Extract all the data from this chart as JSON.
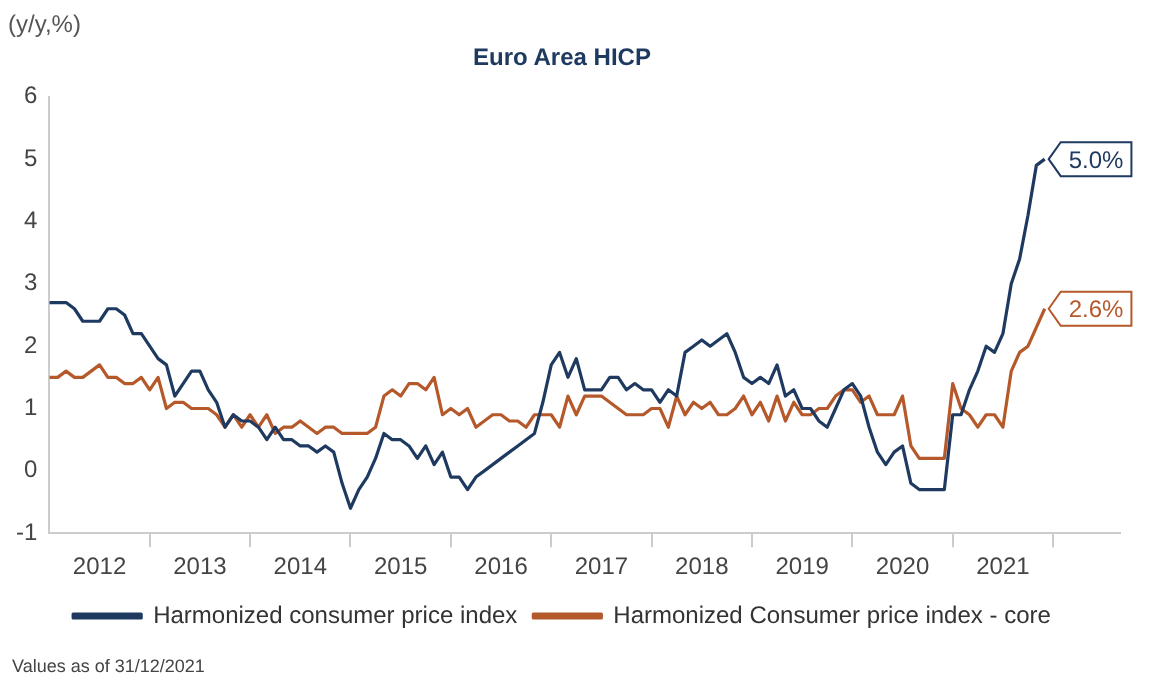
{
  "chart_data": {
    "type": "line",
    "title": "Euro Area HICP",
    "ylabel": "(y/y,%)",
    "x": [
      "2012-01",
      "2012-02",
      "2012-03",
      "2012-04",
      "2012-05",
      "2012-06",
      "2012-07",
      "2012-08",
      "2012-09",
      "2012-10",
      "2012-11",
      "2012-12",
      "2013-01",
      "2013-02",
      "2013-03",
      "2013-04",
      "2013-05",
      "2013-06",
      "2013-07",
      "2013-08",
      "2013-09",
      "2013-10",
      "2013-11",
      "2013-12",
      "2014-01",
      "2014-02",
      "2014-03",
      "2014-04",
      "2014-05",
      "2014-06",
      "2014-07",
      "2014-08",
      "2014-09",
      "2014-10",
      "2014-11",
      "2014-12",
      "2015-01",
      "2015-02",
      "2015-03",
      "2015-04",
      "2015-05",
      "2015-06",
      "2015-07",
      "2015-08",
      "2015-09",
      "2015-10",
      "2015-11",
      "2015-12",
      "2016-01",
      "2016-02",
      "2016-03",
      "2016-04",
      "2016-05",
      "2016-06",
      "2016-07",
      "2016-08",
      "2016-09",
      "2016-10",
      "2016-11",
      "2016-12",
      "2017-01",
      "2017-02",
      "2017-03",
      "2017-04",
      "2017-05",
      "2017-06",
      "2017-07",
      "2017-08",
      "2017-09",
      "2017-10",
      "2017-11",
      "2017-12",
      "2018-01",
      "2018-02",
      "2018-03",
      "2018-04",
      "2018-05",
      "2018-06",
      "2018-07",
      "2018-08",
      "2018-09",
      "2018-10",
      "2018-11",
      "2018-12",
      "2019-01",
      "2019-02",
      "2019-03",
      "2019-04",
      "2019-05",
      "2019-06",
      "2019-07",
      "2019-08",
      "2019-09",
      "2019-10",
      "2019-11",
      "2019-12",
      "2020-01",
      "2020-02",
      "2020-03",
      "2020-04",
      "2020-05",
      "2020-06",
      "2020-07",
      "2020-08",
      "2020-09",
      "2020-10",
      "2020-11",
      "2020-12",
      "2021-01",
      "2021-02",
      "2021-03",
      "2021-04",
      "2021-05",
      "2021-06",
      "2021-07",
      "2021-08",
      "2021-09",
      "2021-10",
      "2021-11",
      "2021-12"
    ],
    "series": [
      {
        "name": "Harmonized consumer price index",
        "color": "#1f3a60",
        "values": [
          2.7,
          2.7,
          2.7,
          2.6,
          2.4,
          2.4,
          2.4,
          2.6,
          2.6,
          2.5,
          2.2,
          2.2,
          2.0,
          1.8,
          1.7,
          1.2,
          1.4,
          1.6,
          1.6,
          1.3,
          1.1,
          0.7,
          0.9,
          0.8,
          0.8,
          0.7,
          0.5,
          0.7,
          0.5,
          0.5,
          0.4,
          0.4,
          0.3,
          0.4,
          0.3,
          -0.2,
          -0.6,
          -0.3,
          -0.1,
          0.2,
          0.6,
          0.5,
          0.5,
          0.4,
          0.2,
          0.4,
          0.1,
          0.3,
          -0.1,
          -0.1,
          -0.3,
          -0.1,
          0.0,
          0.1,
          0.2,
          0.3,
          0.4,
          0.5,
          0.6,
          1.1,
          1.7,
          1.9,
          1.5,
          1.8,
          1.3,
          1.3,
          1.3,
          1.5,
          1.5,
          1.3,
          1.4,
          1.3,
          1.3,
          1.1,
          1.3,
          1.2,
          1.9,
          2.0,
          2.1,
          2.0,
          2.1,
          2.2,
          1.9,
          1.5,
          1.4,
          1.5,
          1.4,
          1.7,
          1.2,
          1.3,
          1.0,
          1.0,
          0.8,
          0.7,
          1.0,
          1.3,
          1.4,
          1.2,
          0.7,
          0.3,
          0.1,
          0.3,
          0.4,
          -0.2,
          -0.3,
          -0.3,
          -0.3,
          -0.3,
          0.9,
          0.9,
          1.3,
          1.6,
          2.0,
          1.9,
          2.2,
          3.0,
          3.4,
          4.1,
          4.9,
          5.0
        ]
      },
      {
        "name": "Harmonized Consumer price index - core",
        "color": "#b5582a",
        "values": [
          1.5,
          1.5,
          1.6,
          1.5,
          1.5,
          1.6,
          1.7,
          1.5,
          1.5,
          1.4,
          1.4,
          1.5,
          1.3,
          1.5,
          1.0,
          1.1,
          1.1,
          1.0,
          1.0,
          1.0,
          0.9,
          0.7,
          0.9,
          0.7,
          0.9,
          0.7,
          0.9,
          0.6,
          0.7,
          0.7,
          0.8,
          0.7,
          0.6,
          0.7,
          0.7,
          0.6,
          0.6,
          0.6,
          0.6,
          0.7,
          1.2,
          1.3,
          1.2,
          1.4,
          1.4,
          1.3,
          1.5,
          0.9,
          1.0,
          0.9,
          1.0,
          0.7,
          0.8,
          0.9,
          0.9,
          0.8,
          0.8,
          0.7,
          0.9,
          0.9,
          0.9,
          0.7,
          1.2,
          0.9,
          1.2,
          1.2,
          1.2,
          1.1,
          1.0,
          0.9,
          0.9,
          0.9,
          1.0,
          1.0,
          0.7,
          1.2,
          0.9,
          1.1,
          1.0,
          1.1,
          0.9,
          0.9,
          1.0,
          1.2,
          0.9,
          1.1,
          0.8,
          1.2,
          0.8,
          1.1,
          0.9,
          0.9,
          1.0,
          1.0,
          1.2,
          1.3,
          1.3,
          1.1,
          1.2,
          0.9,
          0.9,
          0.9,
          1.2,
          0.4,
          0.2,
          0.2,
          0.2,
          0.2,
          1.4,
          1.0,
          0.9,
          0.7,
          0.9,
          0.9,
          0.7,
          1.6,
          1.9,
          2.0,
          2.3,
          2.6
        ]
      }
    ],
    "xlim": [
      "2012-01",
      "2022-09"
    ],
    "xticks": [
      {
        "value": "2012-07",
        "label": "2012"
      },
      {
        "value": "2013-01",
        "label": null
      },
      {
        "value": "2013-07",
        "label": "2013"
      },
      {
        "value": "2014-01",
        "label": null
      },
      {
        "value": "2014-07",
        "label": "2014"
      },
      {
        "value": "2015-01",
        "label": null
      },
      {
        "value": "2015-07",
        "label": "2015"
      },
      {
        "value": "2016-01",
        "label": null
      },
      {
        "value": "2016-07",
        "label": "2016"
      },
      {
        "value": "2017-01",
        "label": null
      },
      {
        "value": "2017-07",
        "label": "2017"
      },
      {
        "value": "2018-01",
        "label": null
      },
      {
        "value": "2018-07",
        "label": "2018"
      },
      {
        "value": "2019-01",
        "label": null
      },
      {
        "value": "2019-07",
        "label": "2019"
      },
      {
        "value": "2020-01",
        "label": null
      },
      {
        "value": "2020-07",
        "label": "2020"
      },
      {
        "value": "2021-01",
        "label": null
      },
      {
        "value": "2021-07",
        "label": "2021"
      },
      {
        "value": "2022-01",
        "label": null
      }
    ],
    "ylim": [
      -1,
      6
    ],
    "yticks": [
      -1,
      0,
      1,
      2,
      3,
      4,
      5,
      6
    ],
    "legend": "bottom",
    "annotations": [
      {
        "text": "5.0%",
        "x": "2021-12",
        "y": 5.0
      },
      {
        "text": "2.6%",
        "x": "2021-12",
        "y": 2.6
      },
      "Values as of 31/12/2021"
    ]
  }
}
